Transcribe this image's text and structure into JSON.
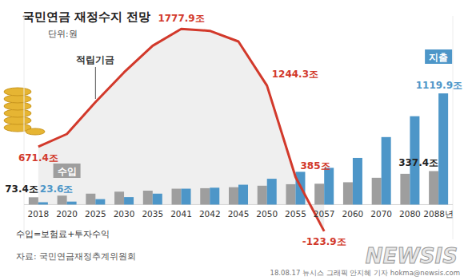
{
  "chart_data": {
    "type": "bar",
    "title": "국민연금 재정수지 전망",
    "subtitle": "단위:원",
    "note": "수입=보험료+투자수익",
    "source": "자료: 국민연금재정추계위원회",
    "credit": "18.08.17 뉴시스 그래픽 안지혜 기자 hokma@newsis.com",
    "logo": "NEWSIS",
    "categories": [
      "2018",
      "2020",
      "2025",
      "2030",
      "2035",
      "2041",
      "2042",
      "2045",
      "2050",
      "2055",
      "2057",
      "2060",
      "2070",
      "2080",
      "2088년"
    ],
    "series": [
      {
        "name": "수입",
        "type": "bar",
        "color": "#9e9e9e",
        "values": [
          73.4,
          90,
          110,
          130,
          140,
          160,
          165,
          175,
          190,
          205,
          210,
          225,
          270,
          310,
          337.4
        ],
        "value_labels": [
          "73.4조",
          null,
          null,
          null,
          null,
          null,
          null,
          null,
          null,
          null,
          null,
          null,
          null,
          null,
          "337.4조"
        ]
      },
      {
        "name": "지출",
        "type": "bar",
        "color": "#4d96c8",
        "values": [
          23.6,
          30,
          55,
          75,
          110,
          160,
          170,
          200,
          260,
          330,
          370,
          470,
          680,
          890,
          1119.9
        ],
        "value_labels": [
          "23.6조",
          null,
          null,
          null,
          null,
          null,
          null,
          null,
          null,
          null,
          null,
          null,
          null,
          null,
          "1119.9조"
        ]
      },
      {
        "name": "적립기금",
        "type": "line",
        "axis": "y2",
        "color": "#d2392b",
        "values": [
          671.4,
          790,
          1090,
          1370,
          1620,
          1777.9,
          1760,
          1660,
          1244.3,
          385,
          -123.9,
          null,
          null,
          null,
          null
        ],
        "value_labels": [
          "671.4조",
          null,
          null,
          null,
          null,
          "1777.9조",
          null,
          null,
          "1244.3조",
          "385조",
          "-123.9조",
          null,
          null,
          null,
          null
        ]
      }
    ],
    "ylim": [
      -350,
      1900
    ],
    "yticks": [
      0
    ],
    "y2lim": [
      -200,
      1900
    ],
    "y2ticks": [],
    "data_labels": true,
    "tick_labels": "x",
    "grid": false
  }
}
